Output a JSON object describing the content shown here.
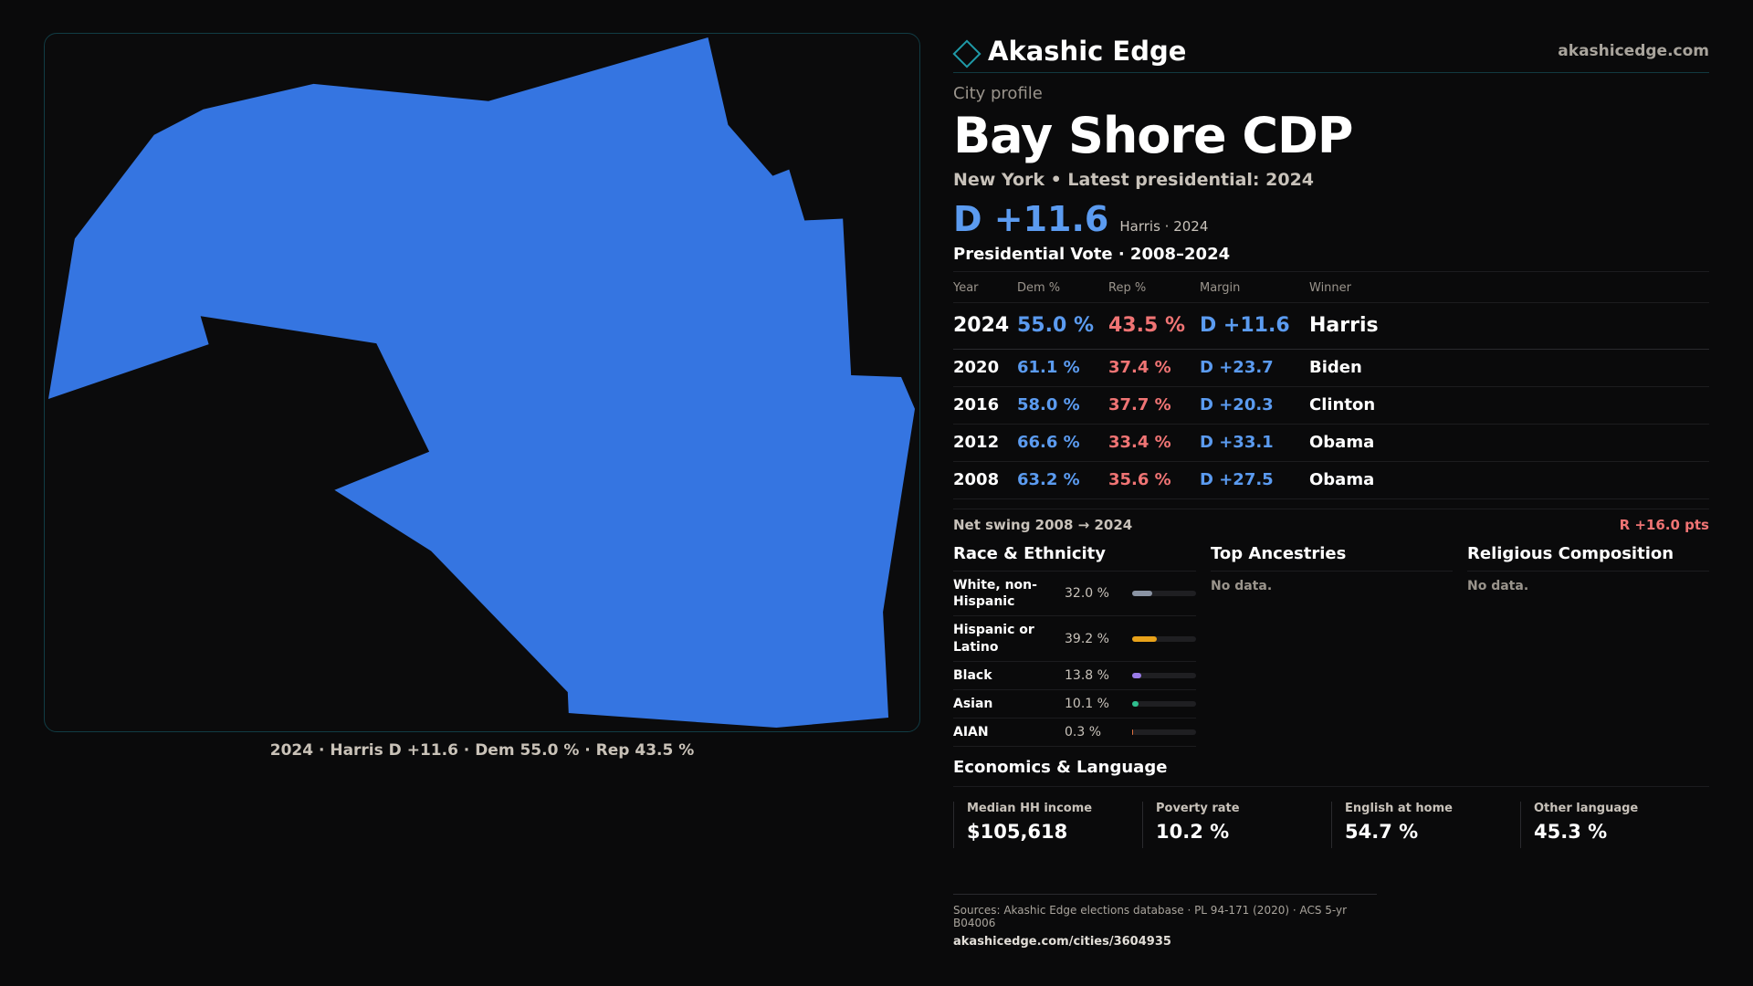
{
  "map": {
    "caption": "2024 · Harris D +11.6 · Dem 55.0 % · Rep 43.5 %",
    "fill_color": "#3575e1"
  },
  "brand": {
    "name": "Akashic Edge",
    "url": "akashicedge.com",
    "icon": "diamond-icon"
  },
  "profile": {
    "eyebrow": "City profile",
    "title": "Bay Shore CDP",
    "subline": "New York  • Latest presidential: 2024",
    "margin": "D +11.6",
    "margin_note": "Harris · 2024"
  },
  "presidential": {
    "title": "Presidential Vote · 2008–2024",
    "headers": [
      "Year",
      "Dem %",
      "Rep %",
      "Margin",
      "Winner"
    ],
    "rows": [
      {
        "year": "2024",
        "dem": "55.0 %",
        "rep": "43.5 %",
        "margin": "D +11.6",
        "winner": "Harris"
      },
      {
        "year": "2020",
        "dem": "61.1 %",
        "rep": "37.4 %",
        "margin": "D +23.7",
        "winner": "Biden"
      },
      {
        "year": "2016",
        "dem": "58.0 %",
        "rep": "37.7 %",
        "margin": "D +20.3",
        "winner": "Clinton"
      },
      {
        "year": "2012",
        "dem": "66.6 %",
        "rep": "33.4 %",
        "margin": "D +33.1",
        "winner": "Obama"
      },
      {
        "year": "2008",
        "dem": "63.2 %",
        "rep": "35.6 %",
        "margin": "D +27.5",
        "winner": "Obama"
      }
    ],
    "swing_label": "Net swing 2008 → 2024",
    "swing_value": "R +16.0 pts"
  },
  "race": {
    "title": "Race & Ethnicity",
    "items": [
      {
        "name": "White, non-Hispanic",
        "pct": "32.0 %",
        "value": 32.0,
        "color": "#8a93a3"
      },
      {
        "name": "Hispanic or Latino",
        "pct": "39.2 %",
        "value": 39.2,
        "color": "#e8a21a"
      },
      {
        "name": "Black",
        "pct": "13.8 %",
        "value": 13.8,
        "color": "#9a7be8"
      },
      {
        "name": "Asian",
        "pct": "10.1 %",
        "value": 10.1,
        "color": "#2fbf8f"
      },
      {
        "name": "AIAN",
        "pct": "0.3 %",
        "value": 0.3,
        "color": "#e07040"
      }
    ]
  },
  "ancestries": {
    "title": "Top Ancestries",
    "empty": "No data."
  },
  "religion": {
    "title": "Religious Composition",
    "empty": "No data."
  },
  "economics": {
    "title": "Economics & Language",
    "cells": [
      {
        "label": "Median HH income",
        "value": "$105,618"
      },
      {
        "label": "Poverty rate",
        "value": "10.2 %"
      },
      {
        "label": "English at home",
        "value": "54.7 %"
      },
      {
        "label": "Other language",
        "value": "45.3 %"
      }
    ]
  },
  "sources": {
    "text": "Sources: Akashic Edge elections database · PL 94-171 (2020) · ACS 5-yr B04006",
    "url": "akashicedge.com/cities/3604935"
  }
}
